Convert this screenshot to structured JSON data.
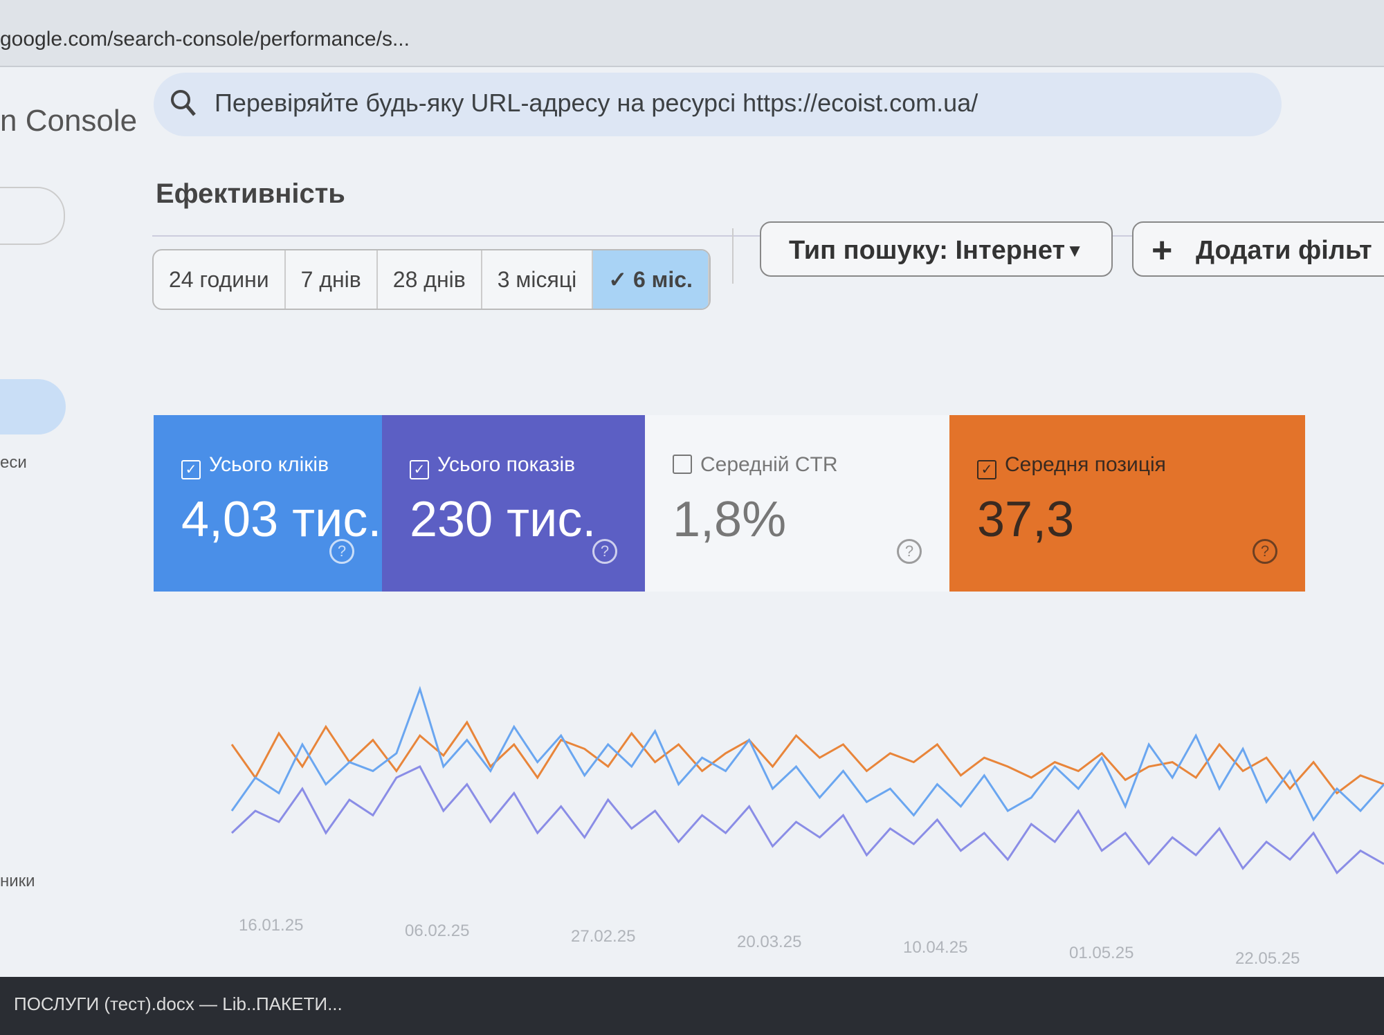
{
  "browser": {
    "url": "google.com/search-console/performance/s..."
  },
  "app": {
    "name": "n Console",
    "search_placeholder": "Перевіряйте будь-яку URL-адресу на ресурсі https://ecoist.com.ua/"
  },
  "sidebar": {
    "items": [
      "еси",
      "ники"
    ]
  },
  "page": {
    "title": "Ефективність"
  },
  "date_ranges": [
    {
      "label": "24 години",
      "selected": false
    },
    {
      "label": "7 днів",
      "selected": false
    },
    {
      "label": "28 днів",
      "selected": false
    },
    {
      "label": "3 місяці",
      "selected": false
    },
    {
      "label": "6 міс.",
      "selected": true
    }
  ],
  "filters": {
    "search_type": "Тип пошуку: Інтернет",
    "add_filter": "Додати фільт"
  },
  "metrics": [
    {
      "label": "Усього кліків",
      "value": "4,03 тис.",
      "checked": true,
      "color": "#4a8fe8"
    },
    {
      "label": "Усього показів",
      "value": "230 тис.",
      "checked": true,
      "color": "#5c5fc4"
    },
    {
      "label": "Середній CTR",
      "value": "1,8%",
      "checked": false,
      "color": "#f4f6f9"
    },
    {
      "label": "Середня позиція",
      "value": "37,3",
      "checked": true,
      "color": "#e3732a"
    }
  ],
  "chart_data": {
    "type": "line",
    "xtick_labels": [
      "16.01.25",
      "06.02.25",
      "27.02.25",
      "20.03.25",
      "10.04.25",
      "01.05.25",
      "22.05.25"
    ],
    "ylim": [
      0,
      100
    ],
    "series": [
      {
        "name": "Середня позиція",
        "color": "#e8853a",
        "values": [
          70,
          55,
          75,
          60,
          78,
          62,
          72,
          58,
          74,
          65,
          80,
          60,
          70,
          55,
          72,
          68,
          60,
          75,
          62,
          70,
          58,
          66,
          72,
          60,
          74,
          64,
          70,
          58,
          66,
          62,
          70,
          56,
          64,
          60,
          55,
          62,
          58,
          66,
          54,
          60,
          62,
          55,
          70,
          58,
          64,
          50,
          62,
          48,
          56,
          52
        ]
      },
      {
        "name": "Усього кліків",
        "color": "#6aa6f0",
        "values": [
          40,
          55,
          48,
          70,
          52,
          62,
          58,
          66,
          95,
          60,
          72,
          58,
          78,
          62,
          74,
          56,
          70,
          60,
          76,
          52,
          64,
          58,
          72,
          50,
          60,
          46,
          58,
          44,
          50,
          38,
          52,
          42,
          56,
          40,
          46,
          60,
          50,
          64,
          42,
          70,
          55,
          74,
          50,
          68,
          44,
          58,
          36,
          50,
          40,
          52
        ]
      },
      {
        "name": "Усього показів",
        "color": "#8a8de6",
        "values": [
          30,
          40,
          35,
          50,
          30,
          45,
          38,
          55,
          60,
          40,
          52,
          35,
          48,
          30,
          42,
          28,
          45,
          32,
          40,
          26,
          38,
          30,
          42,
          24,
          35,
          28,
          38,
          20,
          32,
          25,
          36,
          22,
          30,
          18,
          34,
          26,
          40,
          22,
          30,
          16,
          28,
          20,
          32,
          14,
          26,
          18,
          30,
          12,
          22,
          16
        ]
      }
    ]
  },
  "taskbar": {
    "items": [
      "ПОСЛУГИ (тест).docx — Lib...",
      "ПАКЕТИ..."
    ]
  }
}
